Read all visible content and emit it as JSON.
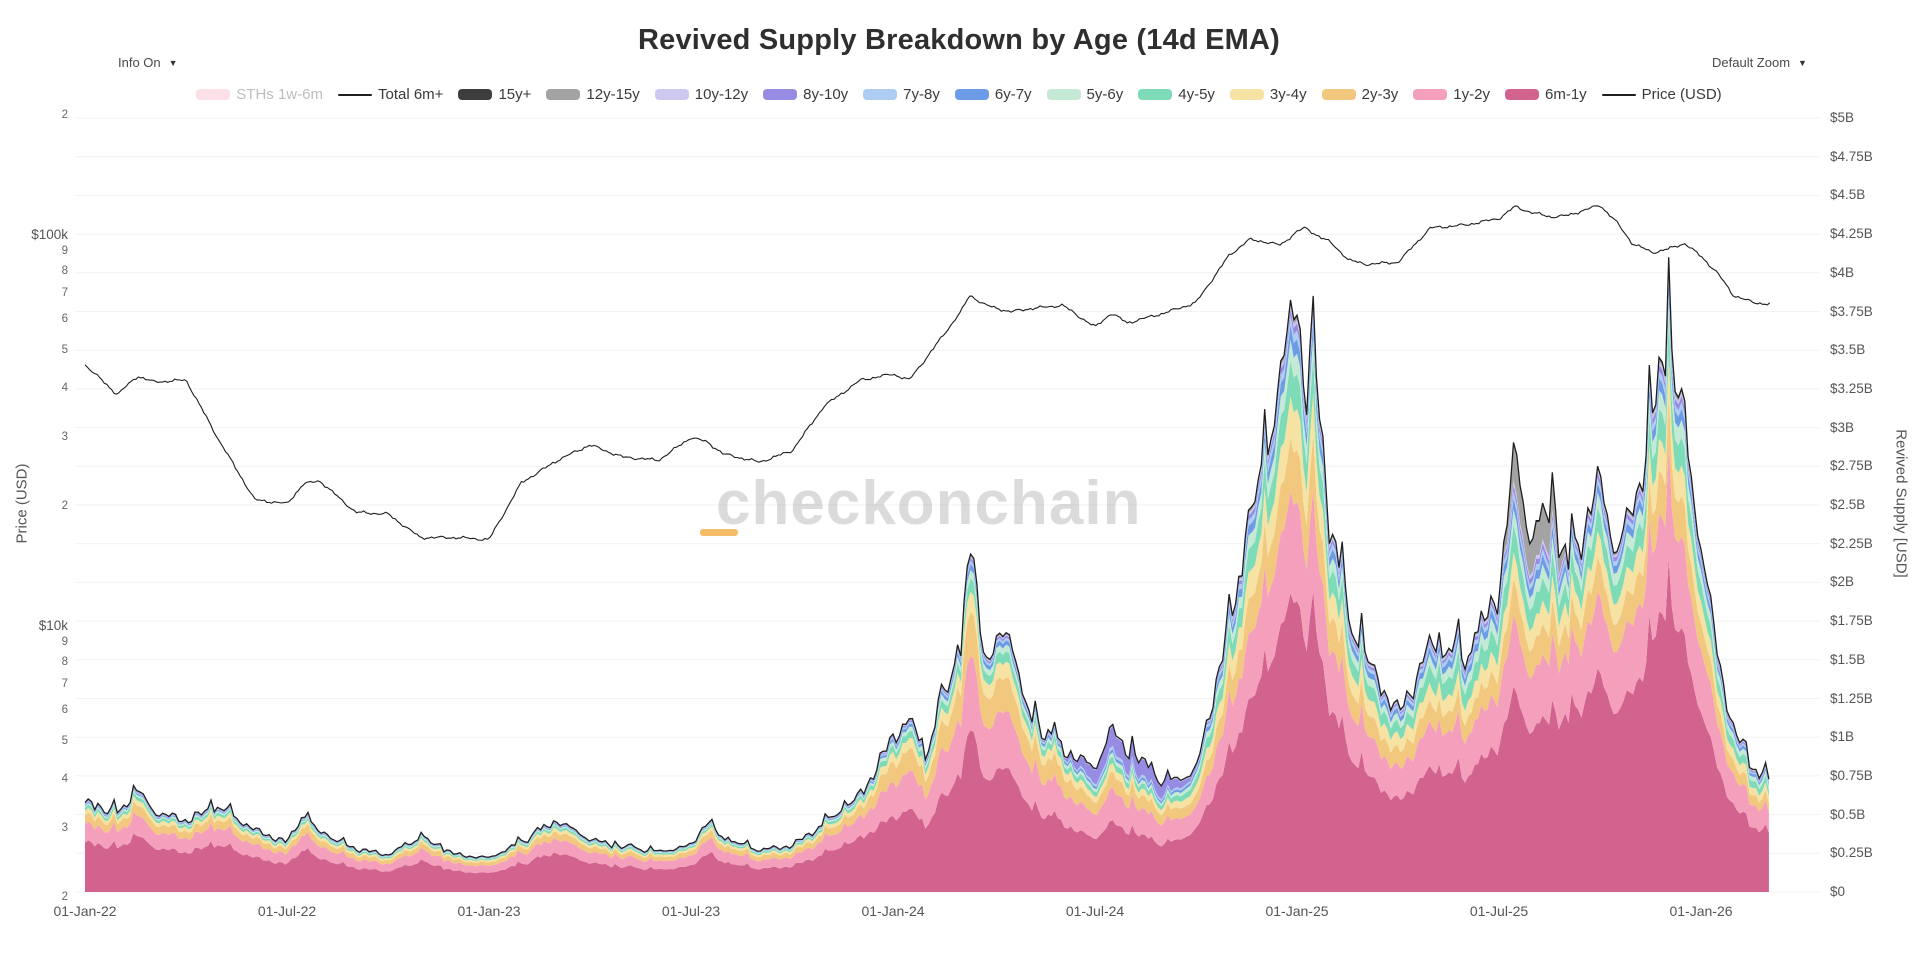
{
  "header": {
    "title": "Revived Supply Breakdown by Age (14d EMA)",
    "info_label": "Info On",
    "zoom_label": "Default Zoom",
    "caret": "▼"
  },
  "watermark": {
    "text": "checkonchain",
    "accent_color": "#f2b24e"
  },
  "legend": {
    "items": [
      {
        "label": "STHs 1w-6m",
        "type": "area",
        "color": "#f7c9d4",
        "hidden": true
      },
      {
        "label": "Total 6m+",
        "type": "line",
        "color": "#1f1f1f",
        "hidden": false
      },
      {
        "label": "15y+",
        "type": "area",
        "color": "#3d3d3d",
        "hidden": false
      },
      {
        "label": "12y-15y",
        "type": "area",
        "color": "#a3a3a3",
        "hidden": false
      },
      {
        "label": "10y-12y",
        "type": "area",
        "color": "#cdc9f0",
        "hidden": false
      },
      {
        "label": "8y-10y",
        "type": "area",
        "color": "#968ce4",
        "hidden": false
      },
      {
        "label": "7y-8y",
        "type": "area",
        "color": "#aecdf2",
        "hidden": false
      },
      {
        "label": "6y-7y",
        "type": "area",
        "color": "#6c9ce6",
        "hidden": false
      },
      {
        "label": "5y-6y",
        "type": "area",
        "color": "#c4ead6",
        "hidden": false
      },
      {
        "label": "4y-5y",
        "type": "area",
        "color": "#7edbb8",
        "hidden": false
      },
      {
        "label": "3y-4y",
        "type": "area",
        "color": "#f6e3a4",
        "hidden": false
      },
      {
        "label": "2y-3y",
        "type": "area",
        "color": "#f2c77e",
        "hidden": false
      },
      {
        "label": "1y-2y",
        "type": "area",
        "color": "#f4a0bc",
        "hidden": false
      },
      {
        "label": "6m-1y",
        "type": "area",
        "color": "#d2638f",
        "hidden": false
      },
      {
        "label": "Price (USD)",
        "type": "line",
        "color": "#1f1f1f",
        "hidden": false
      }
    ]
  },
  "axes": {
    "left": {
      "axis_title": "Price (USD)",
      "scale": "log",
      "ticks": [
        {
          "v": 200000,
          "l": "2",
          "minor": true
        },
        {
          "v": 100000,
          "l": "$100k",
          "minor": false
        },
        {
          "v": 90000,
          "l": "9",
          "minor": true
        },
        {
          "v": 80000,
          "l": "8",
          "minor": true
        },
        {
          "v": 70000,
          "l": "7",
          "minor": true
        },
        {
          "v": 60000,
          "l": "6",
          "minor": true
        },
        {
          "v": 50000,
          "l": "5",
          "minor": true
        },
        {
          "v": 40000,
          "l": "4",
          "minor": true
        },
        {
          "v": 30000,
          "l": "3",
          "minor": true
        },
        {
          "v": 20000,
          "l": "2",
          "minor": true
        },
        {
          "v": 10000,
          "l": "$10k",
          "minor": false
        },
        {
          "v": 9000,
          "l": "9",
          "minor": true
        },
        {
          "v": 8000,
          "l": "8",
          "minor": true
        },
        {
          "v": 7000,
          "l": "7",
          "minor": true
        },
        {
          "v": 6000,
          "l": "6",
          "minor": true
        },
        {
          "v": 5000,
          "l": "5",
          "minor": true
        },
        {
          "v": 4000,
          "l": "4",
          "minor": true
        },
        {
          "v": 3000,
          "l": "3",
          "minor": true
        },
        {
          "v": 2000,
          "l": "2",
          "minor": true
        }
      ]
    },
    "right": {
      "axis_title": "Revived Supply [USD]",
      "scale": "linear",
      "ticks": [
        {
          "v": 5.0,
          "l": "$5B"
        },
        {
          "v": 4.75,
          "l": "$4.75B"
        },
        {
          "v": 4.5,
          "l": "$4.5B"
        },
        {
          "v": 4.25,
          "l": "$4.25B"
        },
        {
          "v": 4.0,
          "l": "$4B"
        },
        {
          "v": 3.75,
          "l": "$3.75B"
        },
        {
          "v": 3.5,
          "l": "$3.5B"
        },
        {
          "v": 3.25,
          "l": "$3.25B"
        },
        {
          "v": 3.0,
          "l": "$3B"
        },
        {
          "v": 2.75,
          "l": "$2.75B"
        },
        {
          "v": 2.5,
          "l": "$2.5B"
        },
        {
          "v": 2.25,
          "l": "$2.25B"
        },
        {
          "v": 2.0,
          "l": "$2B"
        },
        {
          "v": 1.75,
          "l": "$1.75B"
        },
        {
          "v": 1.5,
          "l": "$1.5B"
        },
        {
          "v": 1.25,
          "l": "$1.25B"
        },
        {
          "v": 1.0,
          "l": "$1B"
        },
        {
          "v": 0.75,
          "l": "$0.75B"
        },
        {
          "v": 0.5,
          "l": "$0.5B"
        },
        {
          "v": 0.25,
          "l": "$0.25B"
        },
        {
          "v": 0.0,
          "l": "$0"
        }
      ]
    },
    "x": {
      "labels": [
        {
          "t": 2022.0,
          "l": "01-Jan-22"
        },
        {
          "t": 2022.5,
          "l": "01-Jul-22"
        },
        {
          "t": 2023.0,
          "l": "01-Jan-23"
        },
        {
          "t": 2023.5,
          "l": "01-Jul-23"
        },
        {
          "t": 2024.0,
          "l": "01-Jan-24"
        },
        {
          "t": 2024.5,
          "l": "01-Jul-24"
        },
        {
          "t": 2025.0,
          "l": "01-Jan-25"
        },
        {
          "t": 2025.5,
          "l": "01-Jul-25"
        },
        {
          "t": 2026.0,
          "l": "01-Jan-26"
        }
      ]
    }
  },
  "chart_data": {
    "type": "area",
    "subtype": "stacked_area_with_log_price_line",
    "title": "Revived Supply Breakdown by Age (14d EMA)",
    "x_unit": "decimal_year",
    "x_range": [
      2022.0,
      2026.17
    ],
    "price_axis": {
      "side": "left",
      "scale": "log",
      "unit": "USD",
      "range_usd": [
        2000,
        210000
      ]
    },
    "supply_axis": {
      "side": "right",
      "scale": "linear",
      "unit": "USD billions",
      "range_busd": [
        0,
        5
      ]
    },
    "grid": "horizontal_light",
    "legend_position": "top-center",
    "price_line": {
      "name": "Price (USD)",
      "color": "#1f1f1f"
    },
    "total_line": {
      "name": "Total 6m+",
      "color": "#1f1f1f",
      "meaning": "sum of all age bands"
    },
    "hidden_series": [
      {
        "name": "STHs 1w-6m",
        "visible": false
      }
    ],
    "band_order_bottom_to_top": [
      "6m-1y",
      "1y-2y",
      "2y-3y",
      "3y-4y",
      "4y-5y",
      "5y-6y",
      "6y-7y",
      "7y-8y",
      "8y-10y",
      "10y-12y",
      "12y-15y",
      "15y+"
    ],
    "band_colors": [
      "#d2638f",
      "#f4a0bc",
      "#f2c77e",
      "#f6e3a4",
      "#7edbb8",
      "#c4ead6",
      "#6c9ce6",
      "#aecdf2",
      "#968ce4",
      "#cdc9f0",
      "#a3a3a3",
      "#3d3d3d"
    ],
    "era_fractions": {
      "A": [
        0.55,
        0.2,
        0.1,
        0.05,
        0.035,
        0.02,
        0.013,
        0.008,
        0.008,
        0.004,
        0.004,
        0.003
      ],
      "B": [
        0.48,
        0.22,
        0.13,
        0.06,
        0.04,
        0.025,
        0.018,
        0.01,
        0.009,
        0.004,
        0.004,
        0.002
      ],
      "B2": [
        0.44,
        0.2,
        0.1,
        0.05,
        0.04,
        0.025,
        0.02,
        0.02,
        0.12,
        0.005,
        0.004,
        0.002
      ],
      "C": [
        0.5,
        0.17,
        0.09,
        0.07,
        0.06,
        0.035,
        0.025,
        0.015,
        0.012,
        0.006,
        0.005,
        0.003
      ],
      "D": [
        0.48,
        0.17,
        0.08,
        0.065,
        0.07,
        0.04,
        0.028,
        0.016,
        0.013,
        0.007,
        0.005,
        0.003
      ],
      "E": [
        0.46,
        0.16,
        0.08,
        0.06,
        0.06,
        0.035,
        0.025,
        0.015,
        0.015,
        0.01,
        0.09,
        0.004
      ],
      "F": [
        0.52,
        0.18,
        0.08,
        0.06,
        0.055,
        0.035,
        0.022,
        0.013,
        0.012,
        0.006,
        0.005,
        0.003
      ]
    },
    "anchors_t_priceK_totalB_era": [
      [
        2022.0,
        46.5,
        0.58,
        "A"
      ],
      [
        2022.08,
        39.0,
        0.5,
        "A"
      ],
      [
        2022.13,
        43.5,
        0.66,
        "A"
      ],
      [
        2022.17,
        42.0,
        0.52,
        "A"
      ],
      [
        2022.25,
        42.5,
        0.46,
        "A"
      ],
      [
        2022.33,
        30.0,
        0.55,
        "A"
      ],
      [
        2022.42,
        21.0,
        0.4,
        "A"
      ],
      [
        2022.5,
        20.5,
        0.32,
        "A"
      ],
      [
        2022.54,
        23.0,
        0.5,
        "A"
      ],
      [
        2022.58,
        23.5,
        0.38,
        "A"
      ],
      [
        2022.67,
        19.5,
        0.28,
        "A"
      ],
      [
        2022.75,
        19.3,
        0.24,
        "A"
      ],
      [
        2022.83,
        16.8,
        0.35,
        "A"
      ],
      [
        2022.92,
        16.8,
        0.24,
        "A"
      ],
      [
        2023.0,
        16.6,
        0.22,
        "A"
      ],
      [
        2023.08,
        23.2,
        0.32,
        "A"
      ],
      [
        2023.17,
        26.5,
        0.46,
        "A"
      ],
      [
        2023.25,
        29.0,
        0.34,
        "A"
      ],
      [
        2023.33,
        27.0,
        0.29,
        "A"
      ],
      [
        2023.42,
        26.5,
        0.26,
        "A"
      ],
      [
        2023.5,
        30.3,
        0.3,
        "A"
      ],
      [
        2023.54,
        29.5,
        0.46,
        "A"
      ],
      [
        2023.58,
        27.5,
        0.34,
        "A"
      ],
      [
        2023.67,
        26.2,
        0.27,
        "A"
      ],
      [
        2023.75,
        28.0,
        0.3,
        "A"
      ],
      [
        2023.83,
        36.5,
        0.44,
        "A"
      ],
      [
        2023.92,
        42.5,
        0.62,
        "A"
      ],
      [
        2024.0,
        44.0,
        1.0,
        "B"
      ],
      [
        2024.04,
        42.5,
        1.12,
        "B"
      ],
      [
        2024.08,
        48.0,
        0.88,
        "B"
      ],
      [
        2024.17,
        64.0,
        1.6,
        "B"
      ],
      [
        2024.19,
        70.0,
        2.25,
        "B"
      ],
      [
        2024.23,
        66.0,
        1.5,
        "B"
      ],
      [
        2024.29,
        63.5,
        1.7,
        "B"
      ],
      [
        2024.33,
        64.5,
        1.15,
        "B"
      ],
      [
        2024.42,
        66.0,
        0.92,
        "B"
      ],
      [
        2024.5,
        58.0,
        0.8,
        "B2"
      ],
      [
        2024.54,
        63.0,
        1.05,
        "B2"
      ],
      [
        2024.58,
        59.5,
        0.92,
        "B2"
      ],
      [
        2024.67,
        63.0,
        0.7,
        "B2"
      ],
      [
        2024.75,
        67.0,
        0.78,
        "C"
      ],
      [
        2024.83,
        88.0,
        1.7,
        "C"
      ],
      [
        2024.88,
        97.0,
        2.3,
        "C"
      ],
      [
        2024.92,
        96.0,
        2.8,
        "C"
      ],
      [
        2024.96,
        94.0,
        3.3,
        "C"
      ],
      [
        2025.0,
        102.0,
        3.95,
        "C"
      ],
      [
        2025.02,
        104.0,
        3.1,
        "C"
      ],
      [
        2025.04,
        101.0,
        3.6,
        "C"
      ],
      [
        2025.08,
        96.0,
        2.4,
        "C"
      ],
      [
        2025.13,
        86.0,
        1.75,
        "C"
      ],
      [
        2025.17,
        84.0,
        1.5,
        "C"
      ],
      [
        2025.25,
        85.0,
        1.15,
        "C"
      ],
      [
        2025.29,
        94.0,
        1.35,
        "C"
      ],
      [
        2025.33,
        104.0,
        1.6,
        "D"
      ],
      [
        2025.42,
        106.0,
        1.5,
        "D"
      ],
      [
        2025.5,
        110.0,
        1.95,
        "D"
      ],
      [
        2025.54,
        118.0,
        2.85,
        "E"
      ],
      [
        2025.58,
        114.0,
        2.25,
        "E"
      ],
      [
        2025.63,
        111.0,
        2.5,
        "E"
      ],
      [
        2025.67,
        112.0,
        2.05,
        "F"
      ],
      [
        2025.75,
        119.0,
        2.65,
        "F"
      ],
      [
        2025.79,
        108.0,
        2.2,
        "F"
      ],
      [
        2025.83,
        95.0,
        2.45,
        "F"
      ],
      [
        2025.88,
        90.0,
        3.05,
        "F"
      ],
      [
        2025.92,
        92.0,
        3.6,
        "F"
      ],
      [
        2025.96,
        95.0,
        2.95,
        "F"
      ],
      [
        2026.0,
        88.0,
        2.25,
        "F"
      ],
      [
        2026.04,
        80.0,
        1.55,
        "F"
      ],
      [
        2026.08,
        70.0,
        1.05,
        "F"
      ],
      [
        2026.13,
        67.0,
        0.8,
        "F"
      ],
      [
        2026.17,
        66.5,
        0.7,
        "F"
      ]
    ]
  }
}
